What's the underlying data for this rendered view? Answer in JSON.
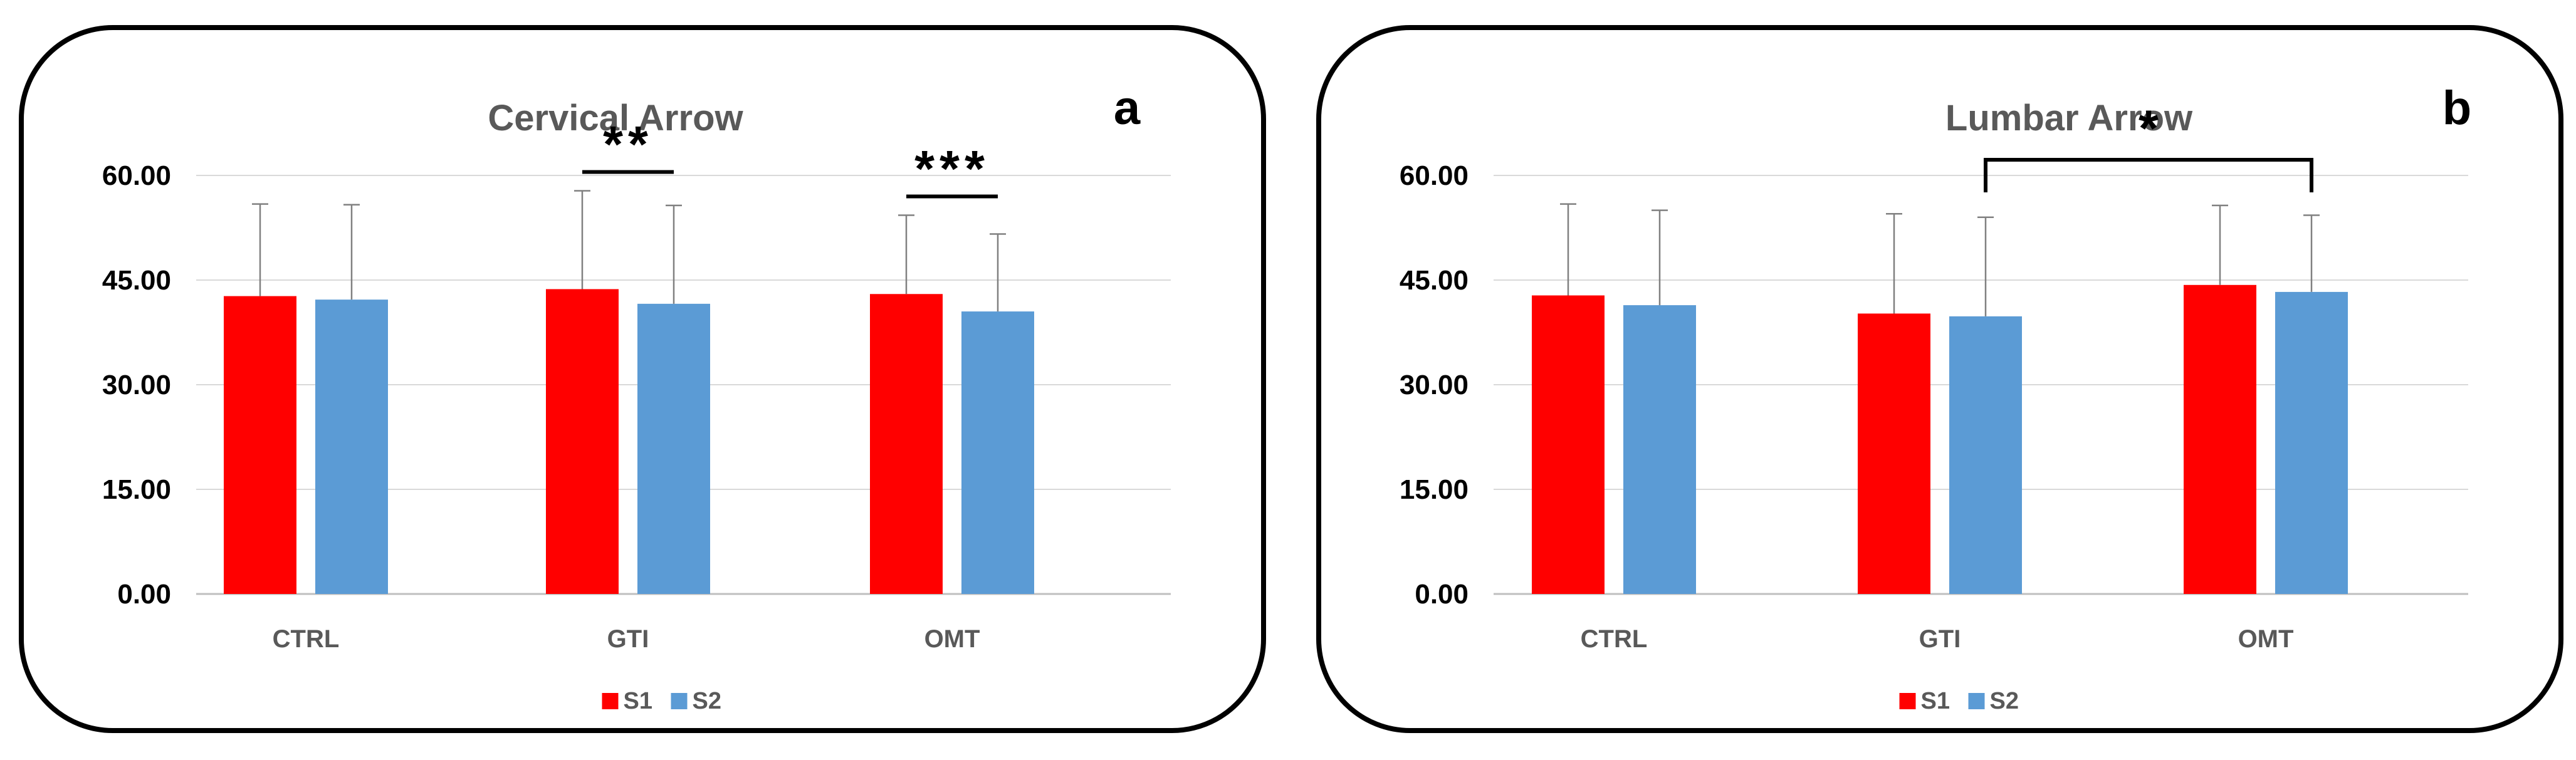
{
  "chart_data": [
    {
      "type": "bar",
      "panel": "a",
      "title": "Cervical Arrow",
      "categories": [
        "CTRL",
        "GTI",
        "OMT"
      ],
      "series": [
        {
          "name": "S1",
          "color": "#ff0000",
          "values": [
            42.7,
            43.7,
            43.0
          ],
          "error": [
            13.2,
            14.1,
            11.3
          ]
        },
        {
          "name": "S2",
          "color": "#5b9bd5",
          "values": [
            42.2,
            41.6,
            40.5
          ],
          "error": [
            13.6,
            14.1,
            11.1
          ]
        }
      ],
      "ylim": [
        0,
        60
      ],
      "yticks": [
        "0.00",
        "15.00",
        "30.00",
        "45.00",
        "60.00"
      ],
      "grid": true,
      "legend_position": "bottom",
      "significance": [
        {
          "category": "GTI",
          "between": [
            "S1",
            "S2"
          ],
          "label": "**"
        },
        {
          "category": "OMT",
          "between": [
            "S1",
            "S2"
          ],
          "label": "***"
        }
      ]
    },
    {
      "type": "bar",
      "panel": "b",
      "title": "Lumbar Arrow",
      "categories": [
        "CTRL",
        "GTI",
        "OMT"
      ],
      "series": [
        {
          "name": "S1",
          "color": "#ff0000",
          "values": [
            42.8,
            40.2,
            44.3
          ],
          "error": [
            13.1,
            14.3,
            11.4
          ]
        },
        {
          "name": "S2",
          "color": "#5b9bd5",
          "values": [
            41.4,
            39.8,
            43.3
          ],
          "error": [
            13.6,
            14.2,
            11.0
          ]
        }
      ],
      "ylim": [
        0,
        60
      ],
      "yticks": [
        "0.00",
        "15.00",
        "30.00",
        "45.00",
        "60.00"
      ],
      "grid": true,
      "legend_position": "bottom",
      "significance": [
        {
          "from": {
            "category": "GTI",
            "series": "S2"
          },
          "to": {
            "category": "OMT",
            "series": "S2"
          },
          "label": "*"
        }
      ]
    }
  ]
}
